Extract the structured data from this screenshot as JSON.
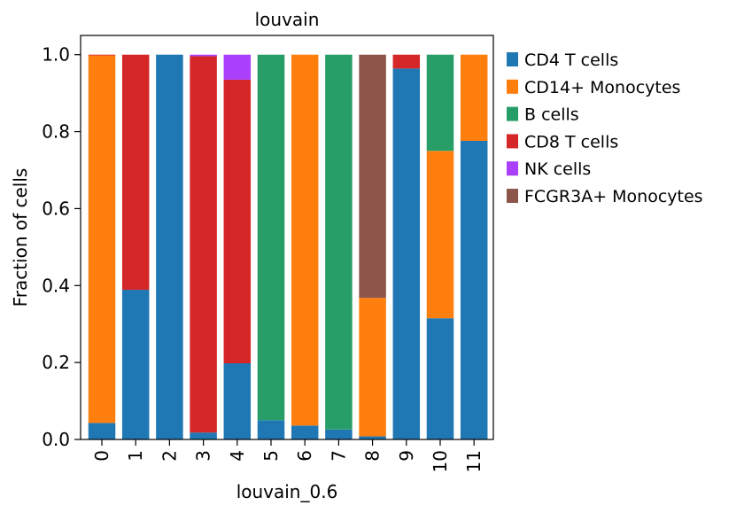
{
  "chart_data": {
    "type": "bar",
    "stacked": true,
    "title": "louvain",
    "xlabel": "louvain_0.6",
    "ylabel": "Fraction of cells",
    "ylim": [
      0,
      1.05
    ],
    "yticks": [
      "0.0",
      "0.2",
      "0.4",
      "0.6",
      "0.8",
      "1.0"
    ],
    "categories": [
      "0",
      "1",
      "2",
      "3",
      "4",
      "5",
      "6",
      "7",
      "8",
      "9",
      "10",
      "11"
    ],
    "legend_position": "outside-right",
    "series": [
      {
        "name": "CD4 T cells",
        "color": "#1f77b4",
        "values": [
          0.043,
          0.389,
          1.0,
          0.018,
          0.198,
          0.05,
          0.036,
          0.026,
          0.008,
          0.964,
          0.315,
          0.776
        ]
      },
      {
        "name": "CD14+ Monocytes",
        "color": "#ff7f0e",
        "values": [
          0.955,
          0.0,
          0.0,
          0.0,
          0.0,
          0.0,
          0.964,
          0.0,
          0.36,
          0.0,
          0.435,
          0.224
        ]
      },
      {
        "name": "B cells",
        "color": "#279e68",
        "values": [
          0.0,
          0.0,
          0.0,
          0.0,
          0.0,
          0.95,
          0.0,
          0.974,
          0.0,
          0.0,
          0.25,
          0.0
        ]
      },
      {
        "name": "CD8 T cells",
        "color": "#d62728",
        "values": [
          0.002,
          0.611,
          0.0,
          0.978,
          0.737,
          0.0,
          0.0,
          0.0,
          0.0,
          0.036,
          0.0,
          0.0
        ]
      },
      {
        "name": "NK cells",
        "color": "#aa40fc",
        "values": [
          0.0,
          0.0,
          0.0,
          0.004,
          0.065,
          0.0,
          0.0,
          0.0,
          0.0,
          0.0,
          0.0,
          0.0
        ]
      },
      {
        "name": "FCGR3A+ Monocytes",
        "color": "#8c564b",
        "values": [
          0.0,
          0.0,
          0.0,
          0.0,
          0.0,
          0.0,
          0.0,
          0.0,
          0.632,
          0.0,
          0.0,
          0.0
        ]
      }
    ]
  }
}
